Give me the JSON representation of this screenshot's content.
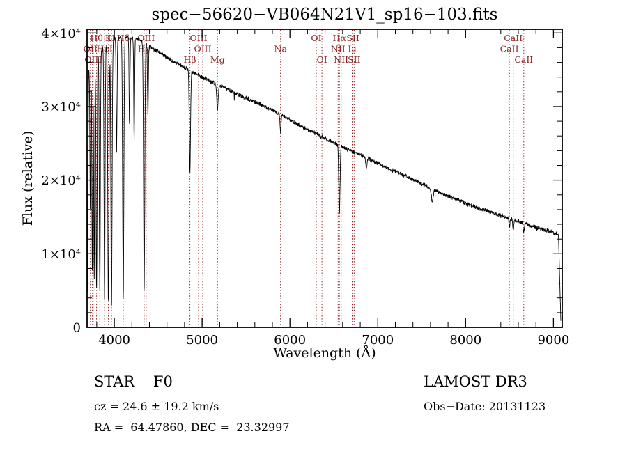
{
  "page": {
    "bg": "#ffffff"
  },
  "chart_data": {
    "type": "line",
    "title": "spec−56620−VB064N21V1_sp16−103.fits",
    "xlabel": "Wavelength (Å)",
    "ylabel": "Flux (relative)",
    "xlim": [
      3690,
      9100
    ],
    "ylim": [
      0,
      40500
    ],
    "x_major_ticks": [
      4000,
      5000,
      6000,
      7000,
      8000,
      9000
    ],
    "x_minor_step": 200,
    "y_major_ticks": [
      {
        "value": 0,
        "label": "0"
      },
      {
        "value": 10000,
        "label": "1×10⁴"
      },
      {
        "value": 20000,
        "label": "2×10⁴"
      },
      {
        "value": 30000,
        "label": "3×10⁴"
      },
      {
        "value": 40000,
        "label": "4×10⁴"
      }
    ],
    "y_minor_step": 2000,
    "grid": false,
    "legend_position": "none",
    "line_color": "#000000",
    "marker_color": "#8b2222",
    "markers": [
      {
        "label": "Hθ",
        "wl": 3798,
        "row": 1
      },
      {
        "label": "K",
        "wl": 3933,
        "row": 1
      },
      {
        "label": "H",
        "wl": 3968,
        "row": 1
      },
      {
        "label": "Hδ",
        "wl": 4102,
        "row": 1
      },
      {
        "label": "OIII",
        "wl": 4363,
        "row": 1
      },
      {
        "label": "OII",
        "wl": 3727,
        "row": 2
      },
      {
        "label": "HeI",
        "wl": 3889,
        "row": 2
      },
      {
        "label": "Hγ",
        "wl": 4340,
        "row": 2
      },
      {
        "label": "OIII",
        "wl": 3760,
        "row": 3
      },
      {
        "label": "Hβ",
        "wl": 4861,
        "row": 3
      },
      {
        "label": "OIII",
        "wl": 4959,
        "row": 1
      },
      {
        "label": "OIII",
        "wl": 5007,
        "row": 2
      },
      {
        "label": "Mg",
        "wl": 5175,
        "row": 3
      },
      {
        "label": "Na",
        "wl": 5893,
        "row": 2
      },
      {
        "label": "OI",
        "wl": 6300,
        "row": 1
      },
      {
        "label": "Hα",
        "wl": 6563,
        "row": 1
      },
      {
        "label": "SII",
        "wl": 6717,
        "row": 1
      },
      {
        "label": "NII",
        "wl": 6548,
        "row": 2
      },
      {
        "label": "Li",
        "wl": 6708,
        "row": 2
      },
      {
        "label": "OI",
        "wl": 6364,
        "row": 3
      },
      {
        "label": "NII",
        "wl": 6583,
        "row": 3
      },
      {
        "label": "SII",
        "wl": 6731,
        "row": 3
      },
      {
        "label": "CaII",
        "wl": 8542,
        "row": 1
      },
      {
        "label": "CaII",
        "wl": 8498,
        "row": 2
      },
      {
        "label": "CaII",
        "wl": 8662,
        "row": 3
      }
    ],
    "extra_marker_lines": [
      3750,
      3835
    ],
    "spectrum": {
      "start": 3694,
      "end": 9086,
      "sample_step": 2.5,
      "seed": 20131123,
      "noise_amplitude": 330,
      "left_ramp": [
        3692,
        3706
      ],
      "right_ramp": [
        9058,
        9086
      ],
      "continuum": [
        [
          3692,
          34000
        ],
        [
          3720,
          35500
        ],
        [
          3760,
          36500
        ],
        [
          3800,
          37200
        ],
        [
          3850,
          37800
        ],
        [
          3900,
          38300
        ],
        [
          3950,
          38800
        ],
        [
          4000,
          39200
        ],
        [
          4060,
          39400
        ],
        [
          4150,
          39500
        ],
        [
          4250,
          39300
        ],
        [
          4350,
          38600
        ],
        [
          4450,
          37800
        ],
        [
          4550,
          37100
        ],
        [
          4650,
          36300
        ],
        [
          4750,
          35600
        ],
        [
          4850,
          35000
        ],
        [
          4950,
          34300
        ],
        [
          5050,
          33700
        ],
        [
          5150,
          33100
        ],
        [
          5250,
          32600
        ],
        [
          5350,
          32000
        ],
        [
          5450,
          31400
        ],
        [
          5550,
          30900
        ],
        [
          5650,
          30300
        ],
        [
          5750,
          29800
        ],
        [
          5850,
          29200
        ],
        [
          5950,
          28500
        ],
        [
          6050,
          27900
        ],
        [
          6150,
          27200
        ],
        [
          6250,
          26600
        ],
        [
          6350,
          26000
        ],
        [
          6450,
          25400
        ],
        [
          6550,
          24800
        ],
        [
          6650,
          24200
        ],
        [
          6750,
          23700
        ],
        [
          6850,
          23200
        ],
        [
          6950,
          22600
        ],
        [
          7050,
          22000
        ],
        [
          7150,
          21400
        ],
        [
          7250,
          20900
        ],
        [
          7350,
          20400
        ],
        [
          7450,
          19800
        ],
        [
          7550,
          19200
        ],
        [
          7650,
          18600
        ],
        [
          7750,
          18100
        ],
        [
          7850,
          17600
        ],
        [
          7950,
          17100
        ],
        [
          8050,
          16600
        ],
        [
          8150,
          16200
        ],
        [
          8250,
          15800
        ],
        [
          8350,
          15400
        ],
        [
          8450,
          15000
        ],
        [
          8550,
          14600
        ],
        [
          8650,
          14200
        ],
        [
          8750,
          13800
        ],
        [
          8850,
          13400
        ],
        [
          8950,
          13100
        ],
        [
          9050,
          12600
        ],
        [
          9090,
          12300
        ]
      ],
      "absorption_lines": [
        {
          "wl": 3727,
          "depth": 0.55,
          "sigma": 5
        },
        {
          "wl": 3750,
          "depth": 0.8,
          "sigma": 5
        },
        {
          "wl": 3771,
          "depth": 0.82,
          "sigma": 5
        },
        {
          "wl": 3798,
          "depth": 0.86,
          "sigma": 6
        },
        {
          "wl": 3835,
          "depth": 0.88,
          "sigma": 6
        },
        {
          "wl": 3889,
          "depth": 0.9,
          "sigma": 6
        },
        {
          "wl": 3933,
          "depth": 0.92,
          "sigma": 7
        },
        {
          "wl": 3968,
          "depth": 0.93,
          "sigma": 7
        },
        {
          "wl": 4026,
          "depth": 0.4,
          "sigma": 5
        },
        {
          "wl": 4102,
          "depth": 0.9,
          "sigma": 7
        },
        {
          "wl": 4173,
          "depth": 0.3,
          "sigma": 5
        },
        {
          "wl": 4226,
          "depth": 0.35,
          "sigma": 5
        },
        {
          "wl": 4340,
          "depth": 0.88,
          "sigma": 7
        },
        {
          "wl": 4383,
          "depth": 0.25,
          "sigma": 5
        },
        {
          "wl": 4861,
          "depth": 0.4,
          "sigma": 7
        },
        {
          "wl": 5175,
          "depth": 0.1,
          "sigma": 8
        },
        {
          "wl": 5893,
          "depth": 0.08,
          "sigma": 6
        },
        {
          "wl": 6563,
          "depth": 0.38,
          "sigma": 7
        },
        {
          "wl": 6870,
          "depth": 0.06,
          "sigma": 8
        },
        {
          "wl": 7620,
          "depth": 0.09,
          "sigma": 10
        },
        {
          "wl": 8498,
          "depth": 0.07,
          "sigma": 6
        },
        {
          "wl": 8542,
          "depth": 0.1,
          "sigma": 6
        },
        {
          "wl": 8662,
          "depth": 0.09,
          "sigma": 6
        }
      ]
    }
  },
  "annotations": {
    "class_label": "STAR    F0",
    "cz_label": "cz = 24.6 ± 19.2 km/s",
    "radec_label": "RA =  64.47860, DEC =  23.32997",
    "survey_label": "LAMOST DR3",
    "obsdate_label": "Obs−Date: 20131123"
  }
}
